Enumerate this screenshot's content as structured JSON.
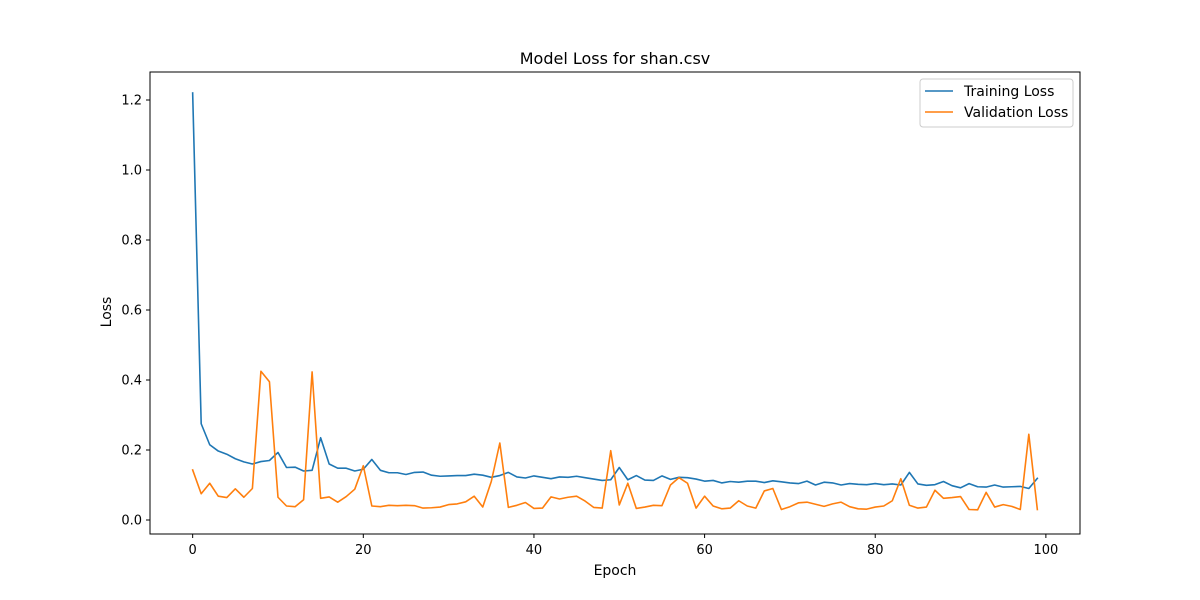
{
  "chart_data": {
    "type": "line",
    "title": "Model Loss for shan.csv",
    "xlabel": "Epoch",
    "ylabel": "Loss",
    "xlim": [
      -5,
      104
    ],
    "ylim": [
      -0.04,
      1.28
    ],
    "xticks": [
      0,
      20,
      40,
      60,
      80,
      100
    ],
    "yticks": [
      0.0,
      0.2,
      0.4,
      0.6,
      0.8,
      1.0,
      1.2
    ],
    "xtick_labels": [
      "0",
      "20",
      "40",
      "60",
      "80",
      "100"
    ],
    "ytick_labels": [
      "0.0",
      "0.2",
      "0.4",
      "0.6",
      "0.8",
      "1.0",
      "1.2"
    ],
    "grid": false,
    "legend": "top-right",
    "x": [
      0,
      1,
      2,
      3,
      4,
      5,
      6,
      7,
      8,
      9,
      10,
      11,
      12,
      13,
      14,
      15,
      16,
      17,
      18,
      19,
      20,
      21,
      22,
      23,
      24,
      25,
      26,
      27,
      28,
      29,
      30,
      31,
      32,
      33,
      34,
      35,
      36,
      37,
      38,
      39,
      40,
      41,
      42,
      43,
      44,
      45,
      46,
      47,
      48,
      49,
      50,
      51,
      52,
      53,
      54,
      55,
      56,
      57,
      58,
      59,
      60,
      61,
      62,
      63,
      64,
      65,
      66,
      67,
      68,
      69,
      70,
      71,
      72,
      73,
      74,
      75,
      76,
      77,
      78,
      79,
      80,
      81,
      82,
      83,
      84,
      85,
      86,
      87,
      88,
      89,
      90,
      91,
      92,
      93,
      94,
      95,
      96,
      97,
      98,
      99
    ],
    "series": [
      {
        "name": "Training Loss",
        "color": "#1f77b4",
        "values": [
          1.22,
          0.275,
          0.215,
          0.197,
          0.188,
          0.175,
          0.166,
          0.16,
          0.167,
          0.17,
          0.193,
          0.15,
          0.151,
          0.14,
          0.142,
          0.235,
          0.16,
          0.148,
          0.148,
          0.14,
          0.145,
          0.173,
          0.142,
          0.135,
          0.135,
          0.13,
          0.136,
          0.137,
          0.128,
          0.125,
          0.126,
          0.127,
          0.127,
          0.131,
          0.128,
          0.122,
          0.127,
          0.136,
          0.123,
          0.12,
          0.126,
          0.122,
          0.118,
          0.123,
          0.122,
          0.125,
          0.121,
          0.117,
          0.113,
          0.115,
          0.15,
          0.115,
          0.127,
          0.114,
          0.113,
          0.126,
          0.116,
          0.122,
          0.121,
          0.117,
          0.111,
          0.113,
          0.106,
          0.11,
          0.108,
          0.111,
          0.111,
          0.107,
          0.112,
          0.109,
          0.106,
          0.104,
          0.111,
          0.1,
          0.108,
          0.106,
          0.1,
          0.104,
          0.102,
          0.101,
          0.104,
          0.101,
          0.103,
          0.1,
          0.136,
          0.103,
          0.099,
          0.101,
          0.11,
          0.098,
          0.092,
          0.104,
          0.095,
          0.094,
          0.1,
          0.094,
          0.095,
          0.096,
          0.09,
          0.119
        ]
      },
      {
        "name": "Validation Loss",
        "color": "#ff7f0e",
        "values": [
          0.143,
          0.075,
          0.105,
          0.068,
          0.064,
          0.089,
          0.065,
          0.09,
          0.425,
          0.395,
          0.065,
          0.04,
          0.038,
          0.058,
          0.423,
          0.062,
          0.066,
          0.051,
          0.067,
          0.088,
          0.155,
          0.04,
          0.038,
          0.042,
          0.041,
          0.042,
          0.041,
          0.034,
          0.035,
          0.037,
          0.044,
          0.046,
          0.052,
          0.068,
          0.037,
          0.11,
          0.22,
          0.036,
          0.042,
          0.05,
          0.033,
          0.034,
          0.066,
          0.06,
          0.065,
          0.068,
          0.054,
          0.036,
          0.034,
          0.198,
          0.043,
          0.105,
          0.033,
          0.037,
          0.042,
          0.041,
          0.1,
          0.121,
          0.105,
          0.034,
          0.068,
          0.04,
          0.032,
          0.034,
          0.055,
          0.04,
          0.034,
          0.083,
          0.09,
          0.03,
          0.038,
          0.049,
          0.051,
          0.045,
          0.039,
          0.046,
          0.051,
          0.038,
          0.032,
          0.031,
          0.037,
          0.04,
          0.055,
          0.118,
          0.042,
          0.034,
          0.037,
          0.085,
          0.062,
          0.064,
          0.067,
          0.03,
          0.029,
          0.079,
          0.037,
          0.044,
          0.039,
          0.03,
          0.245,
          0.03
        ]
      }
    ]
  }
}
